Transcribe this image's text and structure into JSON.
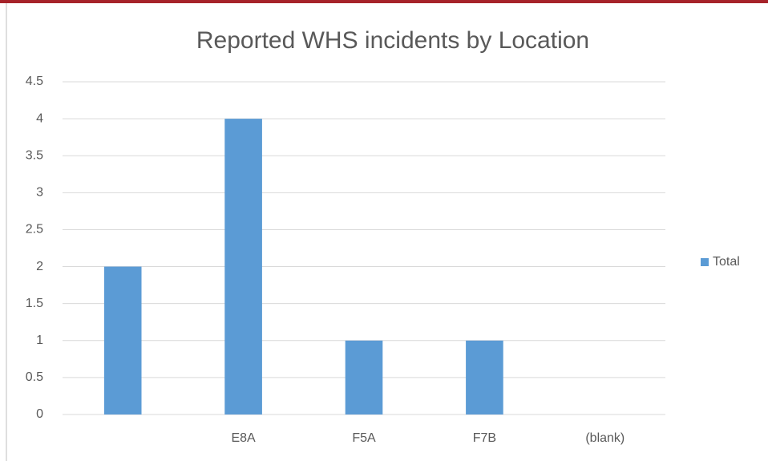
{
  "chart_data": {
    "type": "bar",
    "title": "Reported WHS incidents by Location",
    "categories": [
      null,
      "E8A",
      "F5A",
      "F7B",
      "(blank)"
    ],
    "series": [
      {
        "name": "Total",
        "color": "#5b9bd5",
        "values": [
          2,
          4,
          1,
          1,
          null
        ]
      }
    ],
    "ylim": [
      0,
      4.5
    ],
    "yticks": [
      0,
      0.5,
      1,
      1.5,
      2,
      2.5,
      3,
      3.5,
      4,
      4.5
    ],
    "grid": true,
    "legend": "right"
  }
}
